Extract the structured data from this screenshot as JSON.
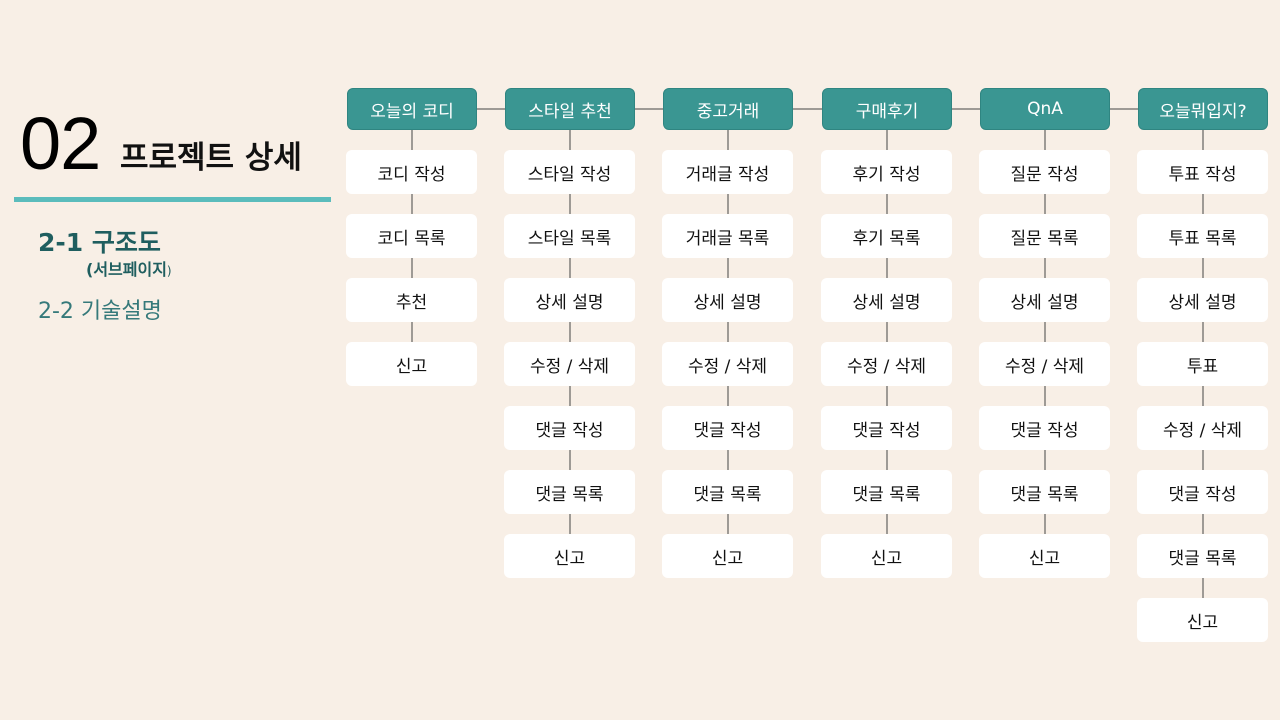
{
  "page": {
    "number": "02",
    "title": "프로젝트 상세",
    "menu": {
      "item1": "2-1 구조도",
      "item1_sub": "(서브페이지",
      "item1_sub_close": ")",
      "item2": "2-2  기술설명"
    }
  },
  "colors": {
    "background": "#f8efe6",
    "header_fill": "#3a9692",
    "accent_rule": "#5bbcbc",
    "menu_text": "#1f5e5f"
  },
  "diagram": {
    "columns": [
      {
        "header": "오늘의 코디",
        "items": [
          "코디 작성",
          "코디 목록",
          "추천",
          "신고"
        ]
      },
      {
        "header": "스타일 추천",
        "items": [
          "스타일 작성",
          "스타일 목록",
          "상세 설명",
          "수정 / 삭제",
          "댓글 작성",
          "댓글 목록",
          "신고"
        ]
      },
      {
        "header": "중고거래",
        "items": [
          "거래글 작성",
          "거래글 목록",
          "상세 설명",
          "수정 / 삭제",
          "댓글 작성",
          "댓글 목록",
          "신고"
        ]
      },
      {
        "header": "구매후기",
        "items": [
          "후기 작성",
          "후기 목록",
          "상세 설명",
          "수정 / 삭제",
          "댓글 작성",
          "댓글 목록",
          "신고"
        ]
      },
      {
        "header": "QnA",
        "items": [
          "질문 작성",
          "질문 목록",
          "상세 설명",
          "수정 / 삭제",
          "댓글 작성",
          "댓글 목록",
          "신고"
        ]
      },
      {
        "header": "오늘뭐입지?",
        "items": [
          "투표 작성",
          "투표 목록",
          "상세 설명",
          "투표",
          "수정 / 삭제",
          "댓글 작성",
          "댓글 목록",
          "신고"
        ]
      }
    ]
  }
}
